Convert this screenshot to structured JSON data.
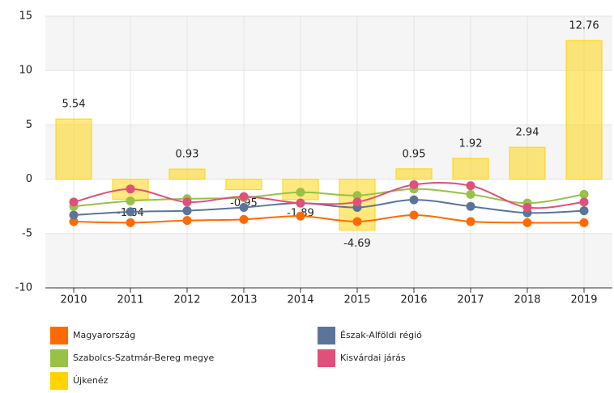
{
  "chart_data": {
    "type": "combo",
    "categories": [
      "2010",
      "2011",
      "2012",
      "2013",
      "2014",
      "2015",
      "2016",
      "2017",
      "2018",
      "2019"
    ],
    "ylim": [
      -10,
      15
    ],
    "yticks": [
      -10,
      -5,
      0,
      5,
      10,
      15
    ],
    "grid": true,
    "series": [
      {
        "name": "Magyarország",
        "type": "line",
        "color": "#ff6a00",
        "values": [
          -3.9,
          -4.0,
          -3.8,
          -3.7,
          -3.4,
          -3.9,
          -3.3,
          -3.9,
          -4.0,
          -4.0
        ]
      },
      {
        "name": "Észak-Alföldi régió",
        "type": "line",
        "color": "#5b7499",
        "values": [
          -3.3,
          -3.0,
          -2.9,
          -2.6,
          -2.2,
          -2.6,
          -1.9,
          -2.5,
          -3.1,
          -2.9
        ]
      },
      {
        "name": "Szabolcs-Szatmár-Bereg megye",
        "type": "line",
        "color": "#98c146",
        "values": [
          -2.5,
          -2.0,
          -1.8,
          -1.7,
          -1.2,
          -1.5,
          -0.9,
          -1.4,
          -2.2,
          -1.4
        ]
      },
      {
        "name": "Kisvárdai járás",
        "type": "line",
        "color": "#e0507a",
        "values": [
          -2.1,
          -0.9,
          -2.1,
          -1.6,
          -2.2,
          -2.1,
          -0.5,
          -0.6,
          -2.6,
          -2.1
        ]
      },
      {
        "name": "Újkenéz",
        "type": "bar",
        "color": "#ffd400",
        "values": [
          5.54,
          -1.84,
          0.93,
          -0.95,
          -1.89,
          -4.69,
          0.95,
          1.92,
          2.94,
          12.76
        ],
        "data_labels": true
      }
    ]
  }
}
